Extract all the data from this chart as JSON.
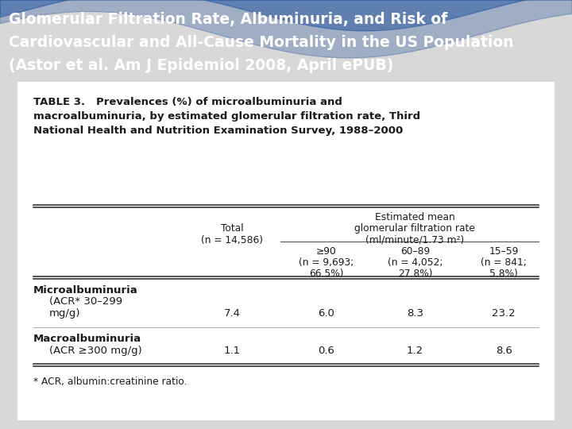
{
  "title_line1": "Glomerular Filtration Rate, Albuminuria, and Risk of",
  "title_line2": "Cardiovascular and All-Cause Mortality in the US Population",
  "title_line3": "(Astor et al. Am J Epidemiol 2008, April ePUB)",
  "header_bg": "#1a4a8a",
  "title_color": "#ffffff",
  "body_bg": "#d8d8d8",
  "table_bg": "#ffffff",
  "table_title": "TABLE 3.   Prevalences (%) of microalbuminuria and\nmacroalbuminuria, by estimated glomerular filtration rate, Third\nNational Health and Nutrition Examination Survey, 1988–2000",
  "col_header_main": "Estimated mean\nglomerular filtration rate\n(ml/minute/1.73 m²)",
  "col_total_label": "Total",
  "col_total_n": "(n = 14,586)",
  "col1_label": "≥90",
  "col1_n": "(n = 9,693;",
  "col1_pct": "66.5%)",
  "col2_label": "60–89",
  "col2_n": "(n = 4,052;",
  "col2_pct": "27.8%)",
  "col3_label": "15–59",
  "col3_n": "(n = 841;",
  "col3_pct": "5.8%)",
  "row1_label1": "Microalbuminuria",
  "row1_label2": "(ACR* 30–299",
  "row1_label3": "mg/g)",
  "row1_total": "7.4",
  "row1_c1": "6.0",
  "row1_c2": "8.3",
  "row1_c3": "23.2",
  "row2_label1": "Macroalbuminuria",
  "row2_label2": "(ACR ≥300 mg/g)",
  "row2_total": "1.1",
  "row2_c1": "0.6",
  "row2_c2": "1.2",
  "row2_c3": "8.6",
  "footnote": "* ACR, albumin:creatinine ratio.",
  "text_color": "#1a1a1a",
  "header_text_size": 13.5,
  "body_text_size": 10.5
}
